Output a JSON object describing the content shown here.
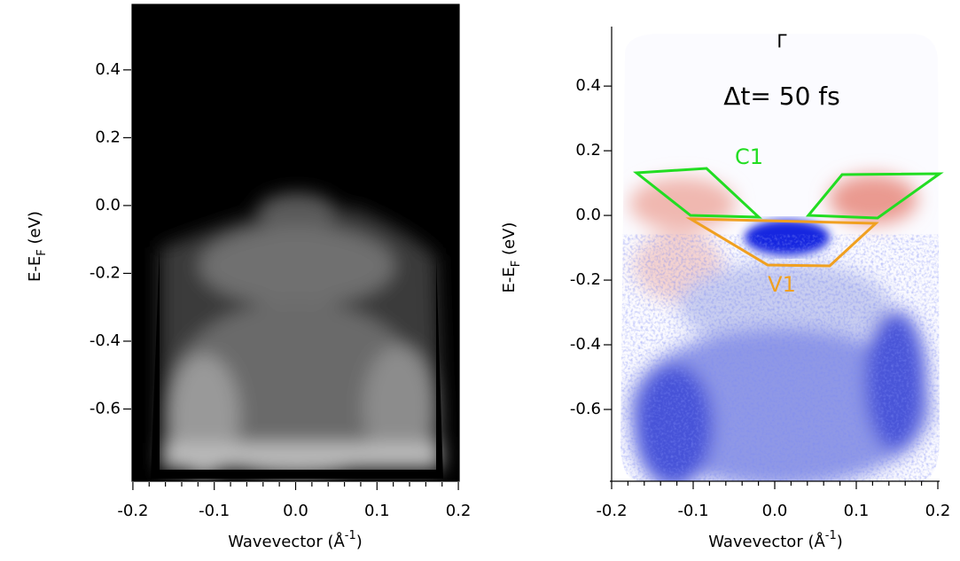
{
  "chart_data": [
    {
      "type": "image",
      "xlabel": [
        "Wavevector (Å",
        "-1",
        ")"
      ],
      "ylabel": [
        "E-E",
        "F",
        " (eV)"
      ],
      "xlim": [
        -0.201,
        0.201
      ],
      "ylim": [
        -0.813,
        0.593
      ],
      "xticks": [
        -0.2,
        -0.1,
        {
          "value": 0,
          "label": "0.0"
        },
        0.1,
        0.2
      ],
      "yticks": [
        0.4,
        0.2,
        {
          "value": 0,
          "label": "0.0"
        },
        -0.2,
        -0.4,
        -0.6
      ]
    },
    {
      "type": "image",
      "xlabel": [
        "Wavevector (Å",
        "-1",
        ")"
      ],
      "ylabel": [
        "E-E",
        "F",
        " (eV)"
      ],
      "xlim": [
        -0.2,
        0.2
      ],
      "ylim": [
        -0.822,
        0.584
      ],
      "xticks": [
        -0.2,
        -0.1,
        {
          "value": 0,
          "label": "0.0"
        },
        0.1,
        0.2
      ],
      "yticks": [
        0.4,
        0.2,
        {
          "value": 0,
          "label": "0.0"
        },
        -0.2,
        -0.4,
        -0.6
      ],
      "annotations": [
        "Γ",
        "Δt= 50 fs",
        "C1",
        "V1"
      ]
    }
  ]
}
